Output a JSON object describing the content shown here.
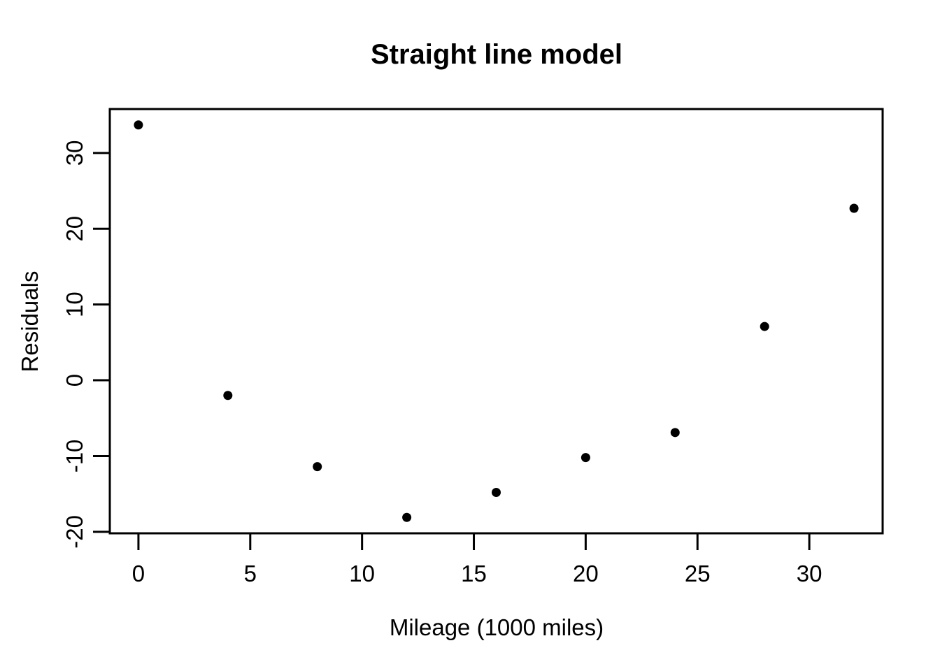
{
  "chart_data": {
    "type": "scatter",
    "title": "Straight line model",
    "xlabel": "Mileage (1000 miles)",
    "ylabel": "Residuals",
    "x": [
      0,
      4,
      8,
      12,
      16,
      20,
      24,
      28,
      32
    ],
    "y": [
      33.7,
      -2.0,
      -11.4,
      -18.1,
      -14.8,
      -10.2,
      -6.9,
      7.1,
      22.7
    ],
    "xticks": [
      0,
      5,
      10,
      15,
      20,
      25,
      30
    ],
    "yticks": [
      -20,
      -10,
      0,
      10,
      20,
      30
    ],
    "xlim": [
      -1.28,
      33.28
    ],
    "ylim": [
      -20.2,
      35.8
    ],
    "grid": false,
    "legend": false,
    "point_color": "#000000",
    "axis_color": "#000000",
    "text_color": "#000000",
    "background_color": "#ffffff"
  }
}
